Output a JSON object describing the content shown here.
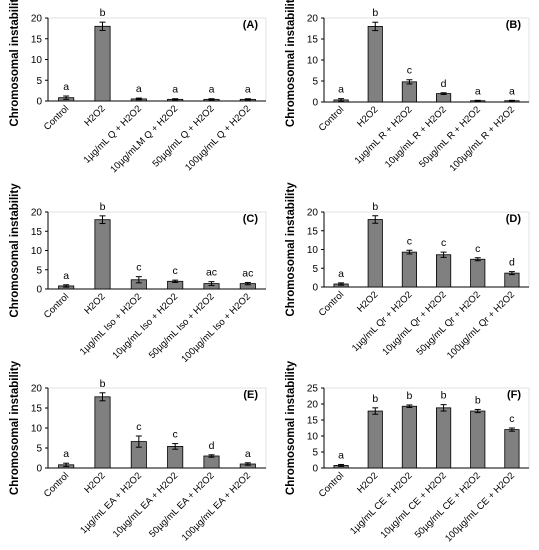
{
  "figure": {
    "description_visible": ""
  },
  "chart_data": [
    {
      "type": "bar",
      "panel_label": "(A)",
      "ylabel": "Chromosomal instability",
      "ylim": [
        0,
        20
      ],
      "yticks": [
        0,
        5,
        10,
        15,
        20
      ],
      "categories": [
        "Control",
        "H2O2",
        "1µg/mL Q + H2O2",
        "10µg/mLM Q + H2O2",
        "50µg/mL Q + H2O2",
        "100µg/mL Q + H2O2"
      ],
      "values": [
        0.8,
        18,
        0.5,
        0.4,
        0.4,
        0.4
      ],
      "errors": [
        0.4,
        1.0,
        0.2,
        0.15,
        0.15,
        0.15
      ],
      "letters": [
        "a",
        "b",
        "a",
        "a",
        "a",
        "a"
      ],
      "bar_color": "#808080"
    },
    {
      "type": "bar",
      "panel_label": "(B)",
      "ylabel": "Chromosomal instability",
      "ylim": [
        0,
        20
      ],
      "yticks": [
        0,
        5,
        10,
        15,
        20
      ],
      "categories": [
        "Control",
        "H2O2",
        "1µg/mL R + H2O2",
        "10µg/mL R + H2O2",
        "50µg/mL R + H2O2",
        "100µg/mL R + H2O2"
      ],
      "values": [
        0.5,
        18,
        4.8,
        2.0,
        0.3,
        0.3
      ],
      "errors": [
        0.3,
        1.0,
        0.5,
        0.2,
        0.1,
        0.1
      ],
      "letters": [
        "a",
        "b",
        "c",
        "d",
        "a",
        "a"
      ],
      "bar_color": "#808080"
    },
    {
      "type": "bar",
      "panel_label": "(C)",
      "ylabel": "Chromosomal instability",
      "ylim": [
        0,
        20
      ],
      "yticks": [
        0,
        5,
        10,
        15,
        20
      ],
      "categories": [
        "Control",
        "H2O2",
        "1µg/mL Iso + H2O2",
        "10µg/mL Iso + H2O2",
        "50µg/mL Iso + H2O2",
        "100µg/mL Iso + H2O2"
      ],
      "values": [
        0.8,
        18,
        2.4,
        2.0,
        1.4,
        1.4
      ],
      "errors": [
        0.3,
        1.0,
        0.8,
        0.3,
        0.5,
        0.3
      ],
      "letters": [
        "a",
        "b",
        "c",
        "c",
        "ac",
        "ac"
      ],
      "bar_color": "#808080"
    },
    {
      "type": "bar",
      "panel_label": "(D)",
      "ylabel": "Chromosomal instability",
      "ylim": [
        0,
        20
      ],
      "yticks": [
        0,
        5,
        10,
        15,
        20
      ],
      "categories": [
        "Control",
        "H2O2",
        "1µg/mL Qr + H2O2",
        "10µg/mL Qr + H2O2",
        "50µg/mL Qr + H2O2",
        "100µg/mL Qr + H2O2"
      ],
      "values": [
        0.8,
        18,
        9.3,
        8.6,
        7.4,
        3.7
      ],
      "errors": [
        0.3,
        1.0,
        0.5,
        0.7,
        0.4,
        0.4
      ],
      "letters": [
        "a",
        "b",
        "c",
        "c",
        "c",
        "d"
      ],
      "bar_color": "#808080"
    },
    {
      "type": "bar",
      "panel_label": "(E)",
      "ylabel": "Chromosomal instability",
      "ylim": [
        0,
        20
      ],
      "yticks": [
        0,
        5,
        10,
        15,
        20
      ],
      "categories": [
        "Control",
        "H2O2",
        "1µg/mL EA + H2O2",
        "10µg/mL EA + H2O2",
        "50µg/mL EA + H2O2",
        "100µg/mL EA + H2O2"
      ],
      "values": [
        0.8,
        17.8,
        6.6,
        5.4,
        3.0,
        1.0
      ],
      "errors": [
        0.4,
        1.0,
        1.4,
        0.7,
        0.3,
        0.3
      ],
      "letters": [
        "a",
        "b",
        "c",
        "c",
        "d",
        "a"
      ],
      "bar_color": "#808080"
    },
    {
      "type": "bar",
      "panel_label": "(F)",
      "ylabel": "Chromosomal instability",
      "ylim": [
        0,
        25
      ],
      "yticks": [
        0,
        5,
        10,
        15,
        20,
        25
      ],
      "categories": [
        "Control",
        "H2O2",
        "1µg/mL CE + H2O2",
        "10µg/mL CE + H2O2",
        "50µg/mL CE + H2O2",
        "100µg/mL CE + H2O2"
      ],
      "values": [
        0.8,
        17.8,
        19.3,
        18.8,
        17.8,
        12.0
      ],
      "errors": [
        0.3,
        1.0,
        0.4,
        1.0,
        0.5,
        0.5
      ],
      "letters": [
        "a",
        "b",
        "b",
        "b",
        "b",
        "c"
      ],
      "bar_color": "#808080"
    }
  ]
}
